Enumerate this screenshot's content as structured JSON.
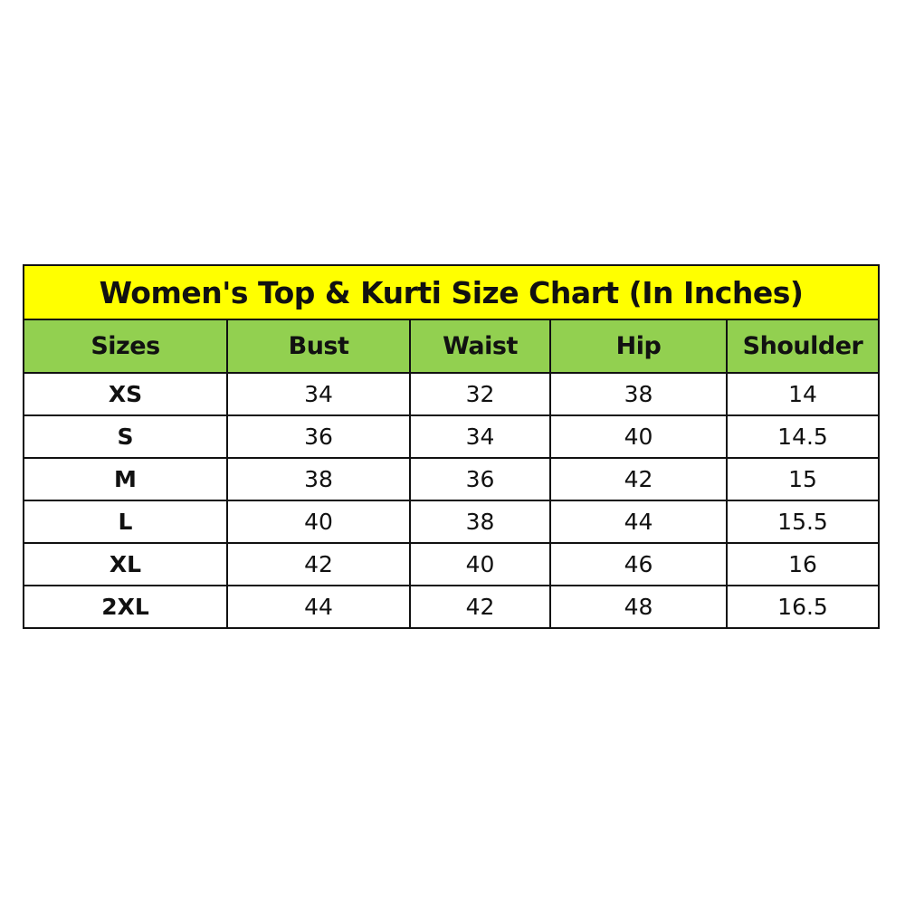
{
  "colors": {
    "title_bg": "#ffff00",
    "header_bg": "#92d050",
    "border": "#111111"
  },
  "chart_data": {
    "type": "table",
    "title": "Women's Top & Kurti Size Chart (In Inches)",
    "columns": [
      "Sizes",
      "Bust",
      "Waist",
      "Hip",
      "Shoulder"
    ],
    "rows": [
      [
        "XS",
        "34",
        "32",
        "38",
        "14"
      ],
      [
        "S",
        "36",
        "34",
        "40",
        "14.5"
      ],
      [
        "M",
        "38",
        "36",
        "42",
        "15"
      ],
      [
        "L",
        "40",
        "38",
        "44",
        "15.5"
      ],
      [
        "XL",
        "42",
        "40",
        "46",
        "16"
      ],
      [
        "2XL",
        "44",
        "42",
        "48",
        "16.5"
      ]
    ]
  }
}
